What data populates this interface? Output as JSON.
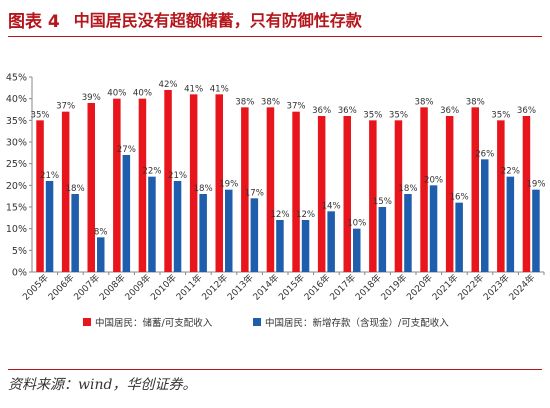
{
  "header": {
    "fig_label": "图表 4",
    "title": "中国居民没有超额储蓄，只有防御性存款"
  },
  "source": "资料来源：wind，华创证券。",
  "colors": {
    "accent": "#b5161b",
    "series1": "#e8161c",
    "series2": "#1f5dad"
  },
  "chart_data": {
    "type": "bar",
    "categories": [
      "2005年",
      "2006年",
      "2007年",
      "2008年",
      "2009年",
      "2010年",
      "2011年",
      "2012年",
      "2013年",
      "2014年",
      "2015年",
      "2016年",
      "2017年",
      "2018年",
      "2019年",
      "2020年",
      "2021年",
      "2022年",
      "2023年",
      "2024年"
    ],
    "series": [
      {
        "name": "中国居民：储蓄/可支配收入",
        "values": [
          35,
          37,
          39,
          40,
          40,
          42,
          41,
          41,
          38,
          38,
          37,
          36,
          36,
          35,
          35,
          38,
          36,
          38,
          35,
          36
        ],
        "labels": [
          "35%",
          "37%",
          "39%",
          "40%",
          "40%",
          "42%",
          "41%",
          "41%",
          "38%",
          "38%",
          "37%",
          "36%",
          "36%",
          "35%",
          "35%",
          "38%",
          "36%",
          "38%",
          "35%",
          "36%"
        ]
      },
      {
        "name": "中国居民：新增存款（含现金）/可支配收入",
        "values": [
          21,
          18,
          8,
          27,
          22,
          21,
          18,
          19,
          17,
          12,
          12,
          14,
          10,
          15,
          18,
          20,
          16,
          26,
          22,
          19
        ],
        "labels": [
          "21%",
          "18%",
          "8%",
          "27%",
          "22%",
          "21%",
          "18%",
          "19%",
          "17%",
          "12%",
          "12%",
          "14%",
          "10%",
          "15%",
          "18%",
          "20%",
          "16%",
          "26%",
          "22%",
          "19%"
        ]
      }
    ],
    "ylim": [
      0,
      45
    ],
    "yticks": [
      "0%",
      "5%",
      "10%",
      "15%",
      "20%",
      "25%",
      "30%",
      "35%",
      "40%",
      "45%"
    ],
    "ytick_values": [
      0,
      5,
      10,
      15,
      20,
      25,
      30,
      35,
      40,
      45
    ],
    "grid": false,
    "legend_position": "bottom"
  }
}
